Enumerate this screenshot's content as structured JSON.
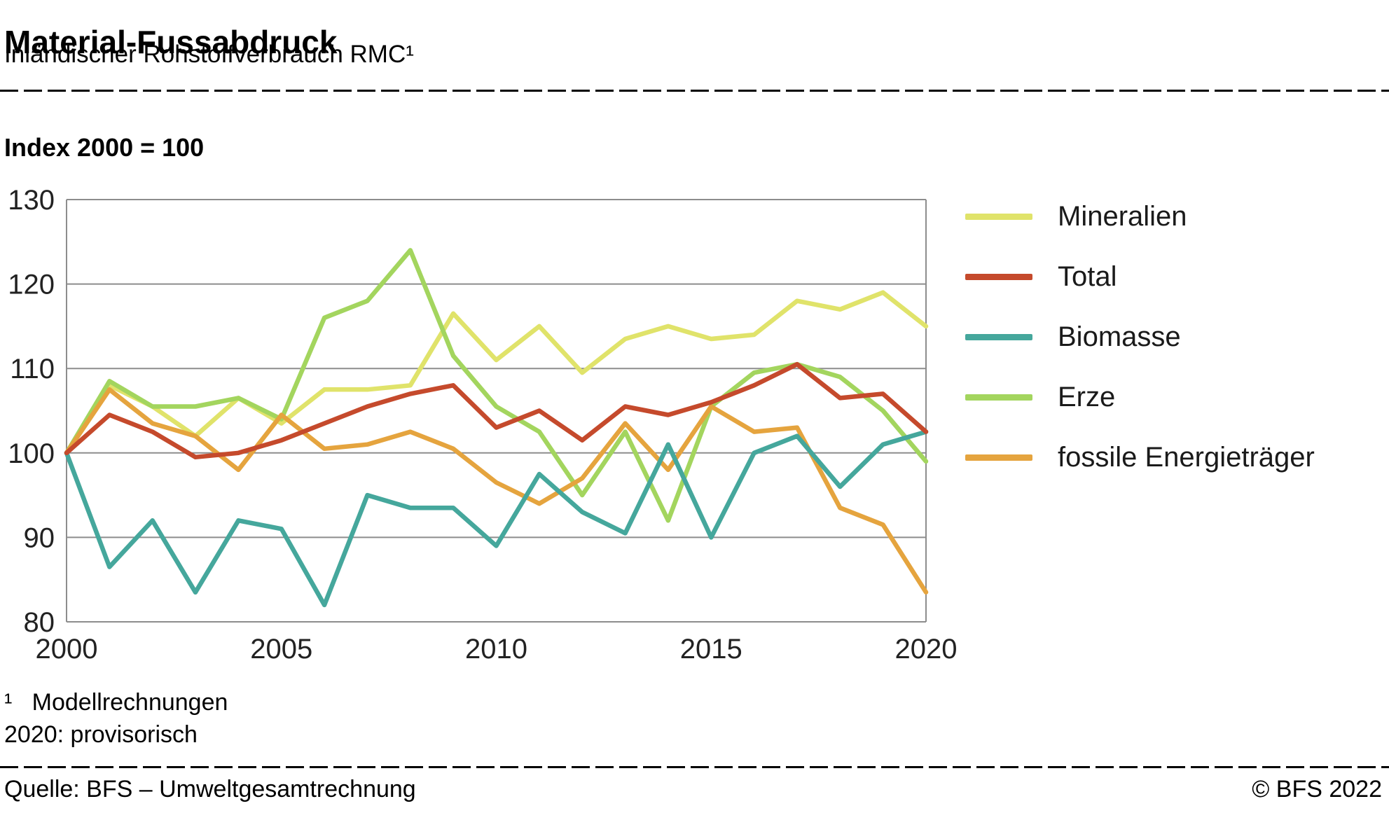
{
  "header": {
    "title": "Material-Fussabdruck",
    "subtitle": "Inländischer Rohstoffverbrauch RMC¹"
  },
  "chart_data": {
    "type": "line",
    "title": "Material-Fussabdruck",
    "index_label": "Index 2000 = 100",
    "x": [
      2000,
      2001,
      2002,
      2003,
      2004,
      2005,
      2006,
      2007,
      2008,
      2009,
      2010,
      2011,
      2012,
      2013,
      2014,
      2015,
      2016,
      2017,
      2018,
      2019,
      2020
    ],
    "x_ticks": [
      2000,
      2005,
      2010,
      2015,
      2020
    ],
    "y_ticks": [
      80,
      90,
      100,
      110,
      120,
      130
    ],
    "ylim": [
      80,
      130
    ],
    "grid": "horizontal",
    "legend_position": "right",
    "grid_color": "#8d8d8d",
    "tick_color": "#222222",
    "series": [
      {
        "name": "Mineralien",
        "color": "#e0e36a",
        "values": [
          100,
          108,
          105.5,
          102,
          106.5,
          103.5,
          107.5,
          107.5,
          108,
          116.5,
          111,
          115,
          109.5,
          113.5,
          115,
          113.5,
          114,
          118,
          117,
          119,
          115
        ]
      },
      {
        "name": "Total",
        "color": "#c54a2c",
        "values": [
          100,
          104.5,
          102.5,
          99.5,
          100,
          101.5,
          103.5,
          105.5,
          107,
          108,
          103,
          105,
          101.5,
          105.5,
          104.5,
          106,
          108,
          110.5,
          106.5,
          107,
          102.5
        ]
      },
      {
        "name": "Biomasse",
        "color": "#45a79c",
        "values": [
          100,
          86.5,
          92,
          83.5,
          92,
          91,
          82,
          95,
          93.5,
          93.5,
          89,
          97.5,
          93,
          90.5,
          101,
          90,
          100,
          102,
          96,
          101,
          102.5
        ]
      },
      {
        "name": "Erze",
        "color": "#a3d55e",
        "values": [
          100,
          108.5,
          105.5,
          105.5,
          106.5,
          104,
          116,
          118,
          124,
          111.5,
          105.5,
          102.5,
          95,
          102.5,
          92,
          105.5,
          109.5,
          110.5,
          109,
          105,
          99
        ]
      },
      {
        "name": "fossile Energieträger",
        "color": "#e5a43e",
        "values": [
          100,
          107.5,
          103.5,
          102,
          98,
          104.5,
          100.5,
          101,
          102.5,
          100.5,
          96.5,
          94,
          97,
          103.5,
          98,
          105.5,
          102.5,
          103,
          93.5,
          91.5,
          83.5
        ]
      }
    ]
  },
  "footnotes": {
    "line1": "¹   Modellrechnungen",
    "line2": "2020: provisorisch"
  },
  "footer": {
    "source": "Quelle: BFS – Umweltgesamtrechnung",
    "copyright": "© BFS 2022"
  }
}
